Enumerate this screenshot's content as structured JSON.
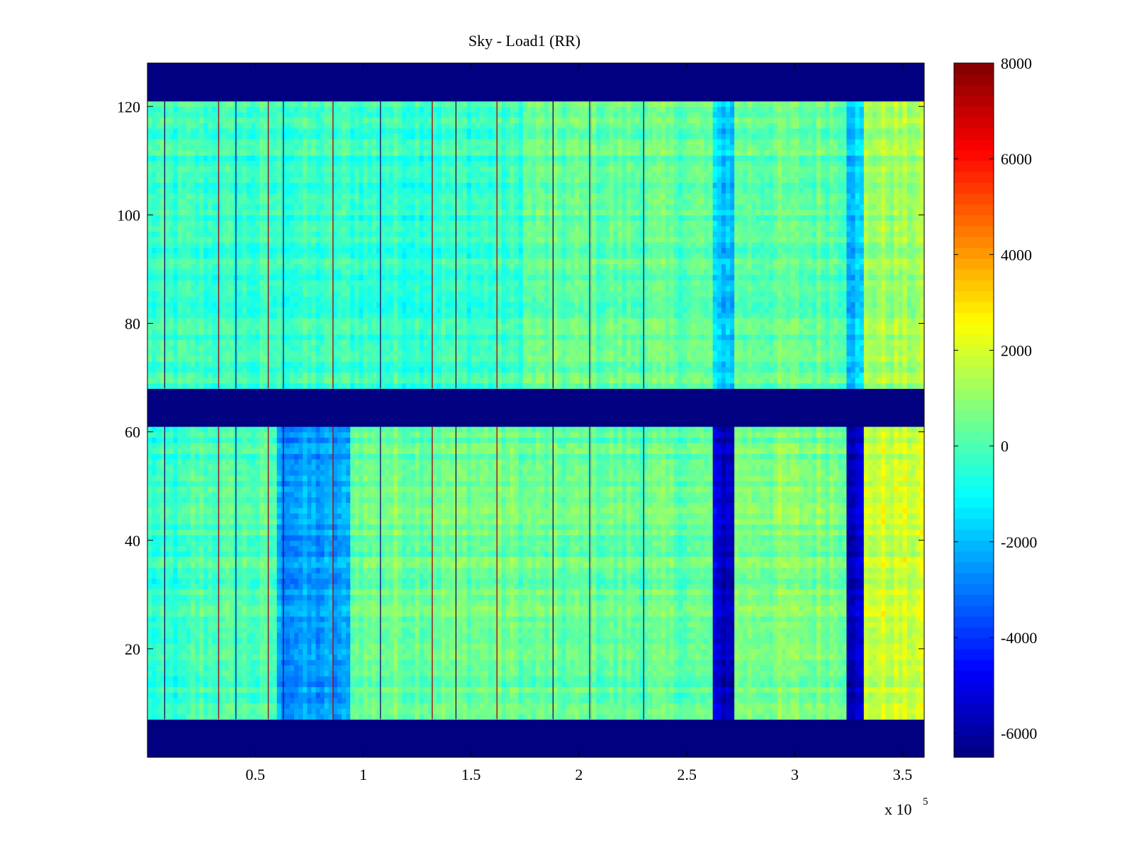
{
  "chart_data": {
    "type": "heatmap",
    "title": "Sky - Load1 (RR)",
    "xlabel": "",
    "ylabel": "",
    "x_multiplier_label": "x 10",
    "x_multiplier_exponent": "5",
    "xlim": [
      0,
      3.6
    ],
    "ylim": [
      0,
      128
    ],
    "x_ticks": [
      0.5,
      1,
      1.5,
      2,
      2.5,
      3,
      3.5
    ],
    "x_tick_labels": [
      "0.5",
      "1",
      "1.5",
      "2",
      "2.5",
      "3",
      "3.5"
    ],
    "y_ticks": [
      20,
      40,
      60,
      80,
      100,
      120
    ],
    "y_tick_labels": [
      "20",
      "40",
      "60",
      "80",
      "100",
      "120"
    ],
    "colorbar": {
      "colormap": "jet",
      "clim": [
        -6500,
        8000
      ],
      "ticks": [
        8000,
        6000,
        4000,
        2000,
        0,
        -2000,
        -4000,
        -6000
      ],
      "tick_labels": [
        "8000",
        "6000",
        "4000",
        "2000",
        "0",
        "-2000",
        "-4000",
        "-6000"
      ]
    },
    "masked_row_bands": [
      [
        0,
        7
      ],
      [
        61,
        68
      ],
      [
        121,
        128
      ]
    ],
    "masked_value": -6500,
    "dark_columns_x": [
      2.64,
      2.72,
      3.24,
      3.32
    ],
    "region_values": [
      {
        "x": [
          0,
          0.2
        ],
        "y_band": "lower",
        "value": -500
      },
      {
        "x": [
          0.2,
          0.6
        ],
        "y_band": "lower",
        "value": 0
      },
      {
        "x": [
          0.6,
          0.95
        ],
        "y_band": "lower",
        "value": -2500
      },
      {
        "x": [
          0.95,
          1.75
        ],
        "y_band": "lower",
        "value": 500
      },
      {
        "x": [
          1.75,
          2.62
        ],
        "y_band": "lower",
        "value": 300
      },
      {
        "x": [
          2.62,
          2.72
        ],
        "y_band": "lower",
        "value": -5500
      },
      {
        "x": [
          2.72,
          3.24
        ],
        "y_band": "lower",
        "value": 700
      },
      {
        "x": [
          3.24,
          3.32
        ],
        "y_band": "lower",
        "value": -5500
      },
      {
        "x": [
          3.32,
          3.6
        ],
        "y_band": "lower",
        "value": 1800
      },
      {
        "x": [
          0,
          1.75
        ],
        "y_band": "upper",
        "value": -300
      },
      {
        "x": [
          1.75,
          2.62
        ],
        "y_band": "upper",
        "value": 300
      },
      {
        "x": [
          2.62,
          2.72
        ],
        "y_band": "upper",
        "value": -1800
      },
      {
        "x": [
          2.72,
          3.24
        ],
        "y_band": "upper",
        "value": 300
      },
      {
        "x": [
          3.24,
          3.32
        ],
        "y_band": "upper",
        "value": -1800
      },
      {
        "x": [
          3.32,
          3.6
        ],
        "y_band": "upper",
        "value": 1200
      }
    ],
    "grid": false,
    "legend": "none"
  }
}
